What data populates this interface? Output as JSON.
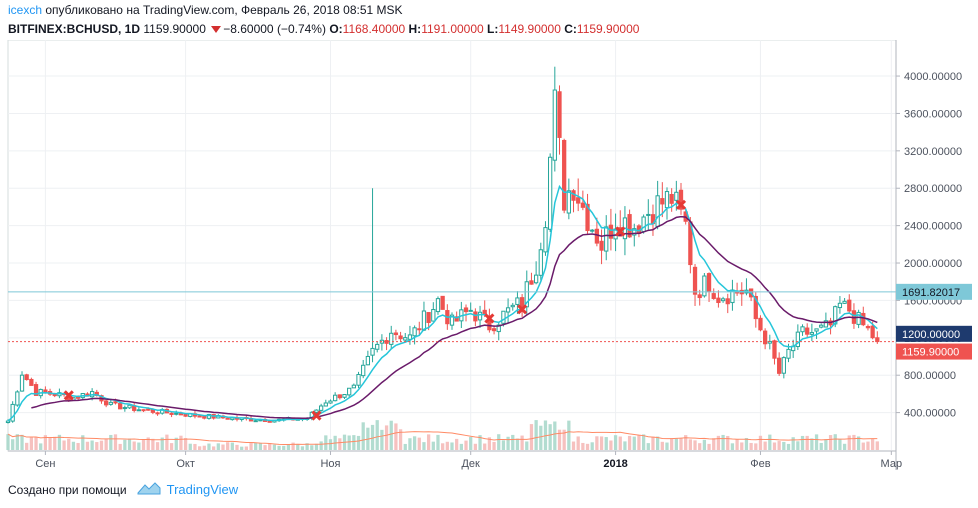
{
  "header": {
    "user": "icexch",
    "published": "опубликовано на TradingView.com, Февраль 26, 2018 08:51 MSK"
  },
  "ticker": {
    "symbol": "BITFINEX:BCHUSD, 1D",
    "last": "1159.90000",
    "change": "−8.60000 (−0.74%)",
    "o_label": "O:",
    "o_value": "1168.40000",
    "h_label": "H:",
    "h_value": "1191.00000",
    "l_label": "L:",
    "l_value": "1149.90000",
    "c_label": "C:",
    "c_value": "1159.90000"
  },
  "footer": {
    "created_with": "Создано при помощи",
    "brand": "TradingView"
  },
  "colors": {
    "up": "#26a69a",
    "up_fill": "#ffffff",
    "down": "#ef5350",
    "ema_fast": "#26c6da",
    "ema_slow": "#6a1b6a",
    "volume_ma": "#ff8a65",
    "vol_up": "#a5d6c8",
    "vol_down": "#f4b6b4",
    "hline": "#7ec8d8",
    "price_line": "#ef5350",
    "label_blue": "#7ec8d8",
    "label_navy": "#1e3a6e",
    "label_red": "#ef5350"
  },
  "chart_data": {
    "type": "candlestick",
    "title": "BITFINEX:BCHUSD, 1D",
    "y_ticks": [
      "4000.00000",
      "3600.00000",
      "3200.00000",
      "2800.00000",
      "2400.00000",
      "2000.00000",
      "1600.00000",
      "1200.00000",
      "800.00000",
      "400.00000"
    ],
    "y_tick_values": [
      4000,
      3600,
      3200,
      2800,
      2400,
      2000,
      1600,
      1200,
      800,
      400
    ],
    "ylim": [
      0,
      4300
    ],
    "x_labels": [
      {
        "label": "Сен",
        "day": 8,
        "bold": false
      },
      {
        "label": "Окт",
        "day": 38,
        "bold": false
      },
      {
        "label": "Ноя",
        "day": 69,
        "bold": false
      },
      {
        "label": "Дек",
        "day": 99,
        "bold": false
      },
      {
        "label": "2018",
        "day": 130,
        "bold": true
      },
      {
        "label": "Фев",
        "day": 161,
        "bold": false
      },
      {
        "label": "Мар",
        "day": 189,
        "bold": false
      }
    ],
    "x_range_days": [
      0,
      190
    ],
    "horizontal_line": {
      "value": 1691.82017,
      "label": "1691.82017"
    },
    "price_levels": [
      {
        "value": 1200,
        "label": "1200.00000",
        "style": "navy"
      },
      {
        "value": 1159.9,
        "label": "1159.90000",
        "style": "red"
      }
    ],
    "anchors": [
      {
        "day": 0,
        "close": 310
      },
      {
        "day": 3,
        "close": 830
      },
      {
        "day": 6,
        "close": 620
      },
      {
        "day": 10,
        "close": 600
      },
      {
        "day": 14,
        "close": 560
      },
      {
        "day": 18,
        "close": 620
      },
      {
        "day": 22,
        "close": 480
      },
      {
        "day": 30,
        "close": 420
      },
      {
        "day": 40,
        "close": 370
      },
      {
        "day": 50,
        "close": 330
      },
      {
        "day": 58,
        "close": 320
      },
      {
        "day": 64,
        "close": 340
      },
      {
        "day": 68,
        "close": 520
      },
      {
        "day": 74,
        "close": 660
      },
      {
        "day": 78,
        "close": 1050
      },
      {
        "day": 82,
        "close": 1280
      },
      {
        "day": 86,
        "close": 1200
      },
      {
        "day": 88,
        "close": 1330
      },
      {
        "day": 92,
        "close": 1600
      },
      {
        "day": 95,
        "close": 1350
      },
      {
        "day": 99,
        "close": 1500
      },
      {
        "day": 103,
        "close": 1330
      },
      {
        "day": 107,
        "close": 1480
      },
      {
        "day": 110,
        "close": 1580
      },
      {
        "day": 113,
        "close": 2000
      },
      {
        "day": 115,
        "close": 2550
      },
      {
        "day": 117,
        "close": 3680
      },
      {
        "day": 119,
        "close": 2700
      },
      {
        "day": 121,
        "close": 2850
      },
      {
        "day": 123,
        "close": 2600
      },
      {
        "day": 127,
        "close": 2200
      },
      {
        "day": 130,
        "close": 2480
      },
      {
        "day": 134,
        "close": 2400
      },
      {
        "day": 138,
        "close": 2600
      },
      {
        "day": 142,
        "close": 2700
      },
      {
        "day": 145,
        "close": 2400
      },
      {
        "day": 147,
        "close": 1700
      },
      {
        "day": 150,
        "close": 1800
      },
      {
        "day": 152,
        "close": 1650
      },
      {
        "day": 156,
        "close": 1700
      },
      {
        "day": 158,
        "close": 1700
      },
      {
        "day": 160,
        "close": 1400
      },
      {
        "day": 163,
        "close": 1100
      },
      {
        "day": 165,
        "close": 820
      },
      {
        "day": 167,
        "close": 1050
      },
      {
        "day": 170,
        "close": 1250
      },
      {
        "day": 173,
        "close": 1260
      },
      {
        "day": 176,
        "close": 1330
      },
      {
        "day": 178,
        "close": 1540
      },
      {
        "day": 180,
        "close": 1500
      },
      {
        "day": 182,
        "close": 1380
      },
      {
        "day": 184,
        "close": 1280
      },
      {
        "day": 186,
        "close": 1159.9
      }
    ],
    "volume_max": 1.0,
    "series": [
      {
        "name": "EMA fast",
        "type": "line"
      },
      {
        "name": "EMA slow",
        "type": "line"
      },
      {
        "name": "Volume",
        "type": "bar"
      },
      {
        "name": "Volume MA",
        "type": "line"
      }
    ]
  }
}
